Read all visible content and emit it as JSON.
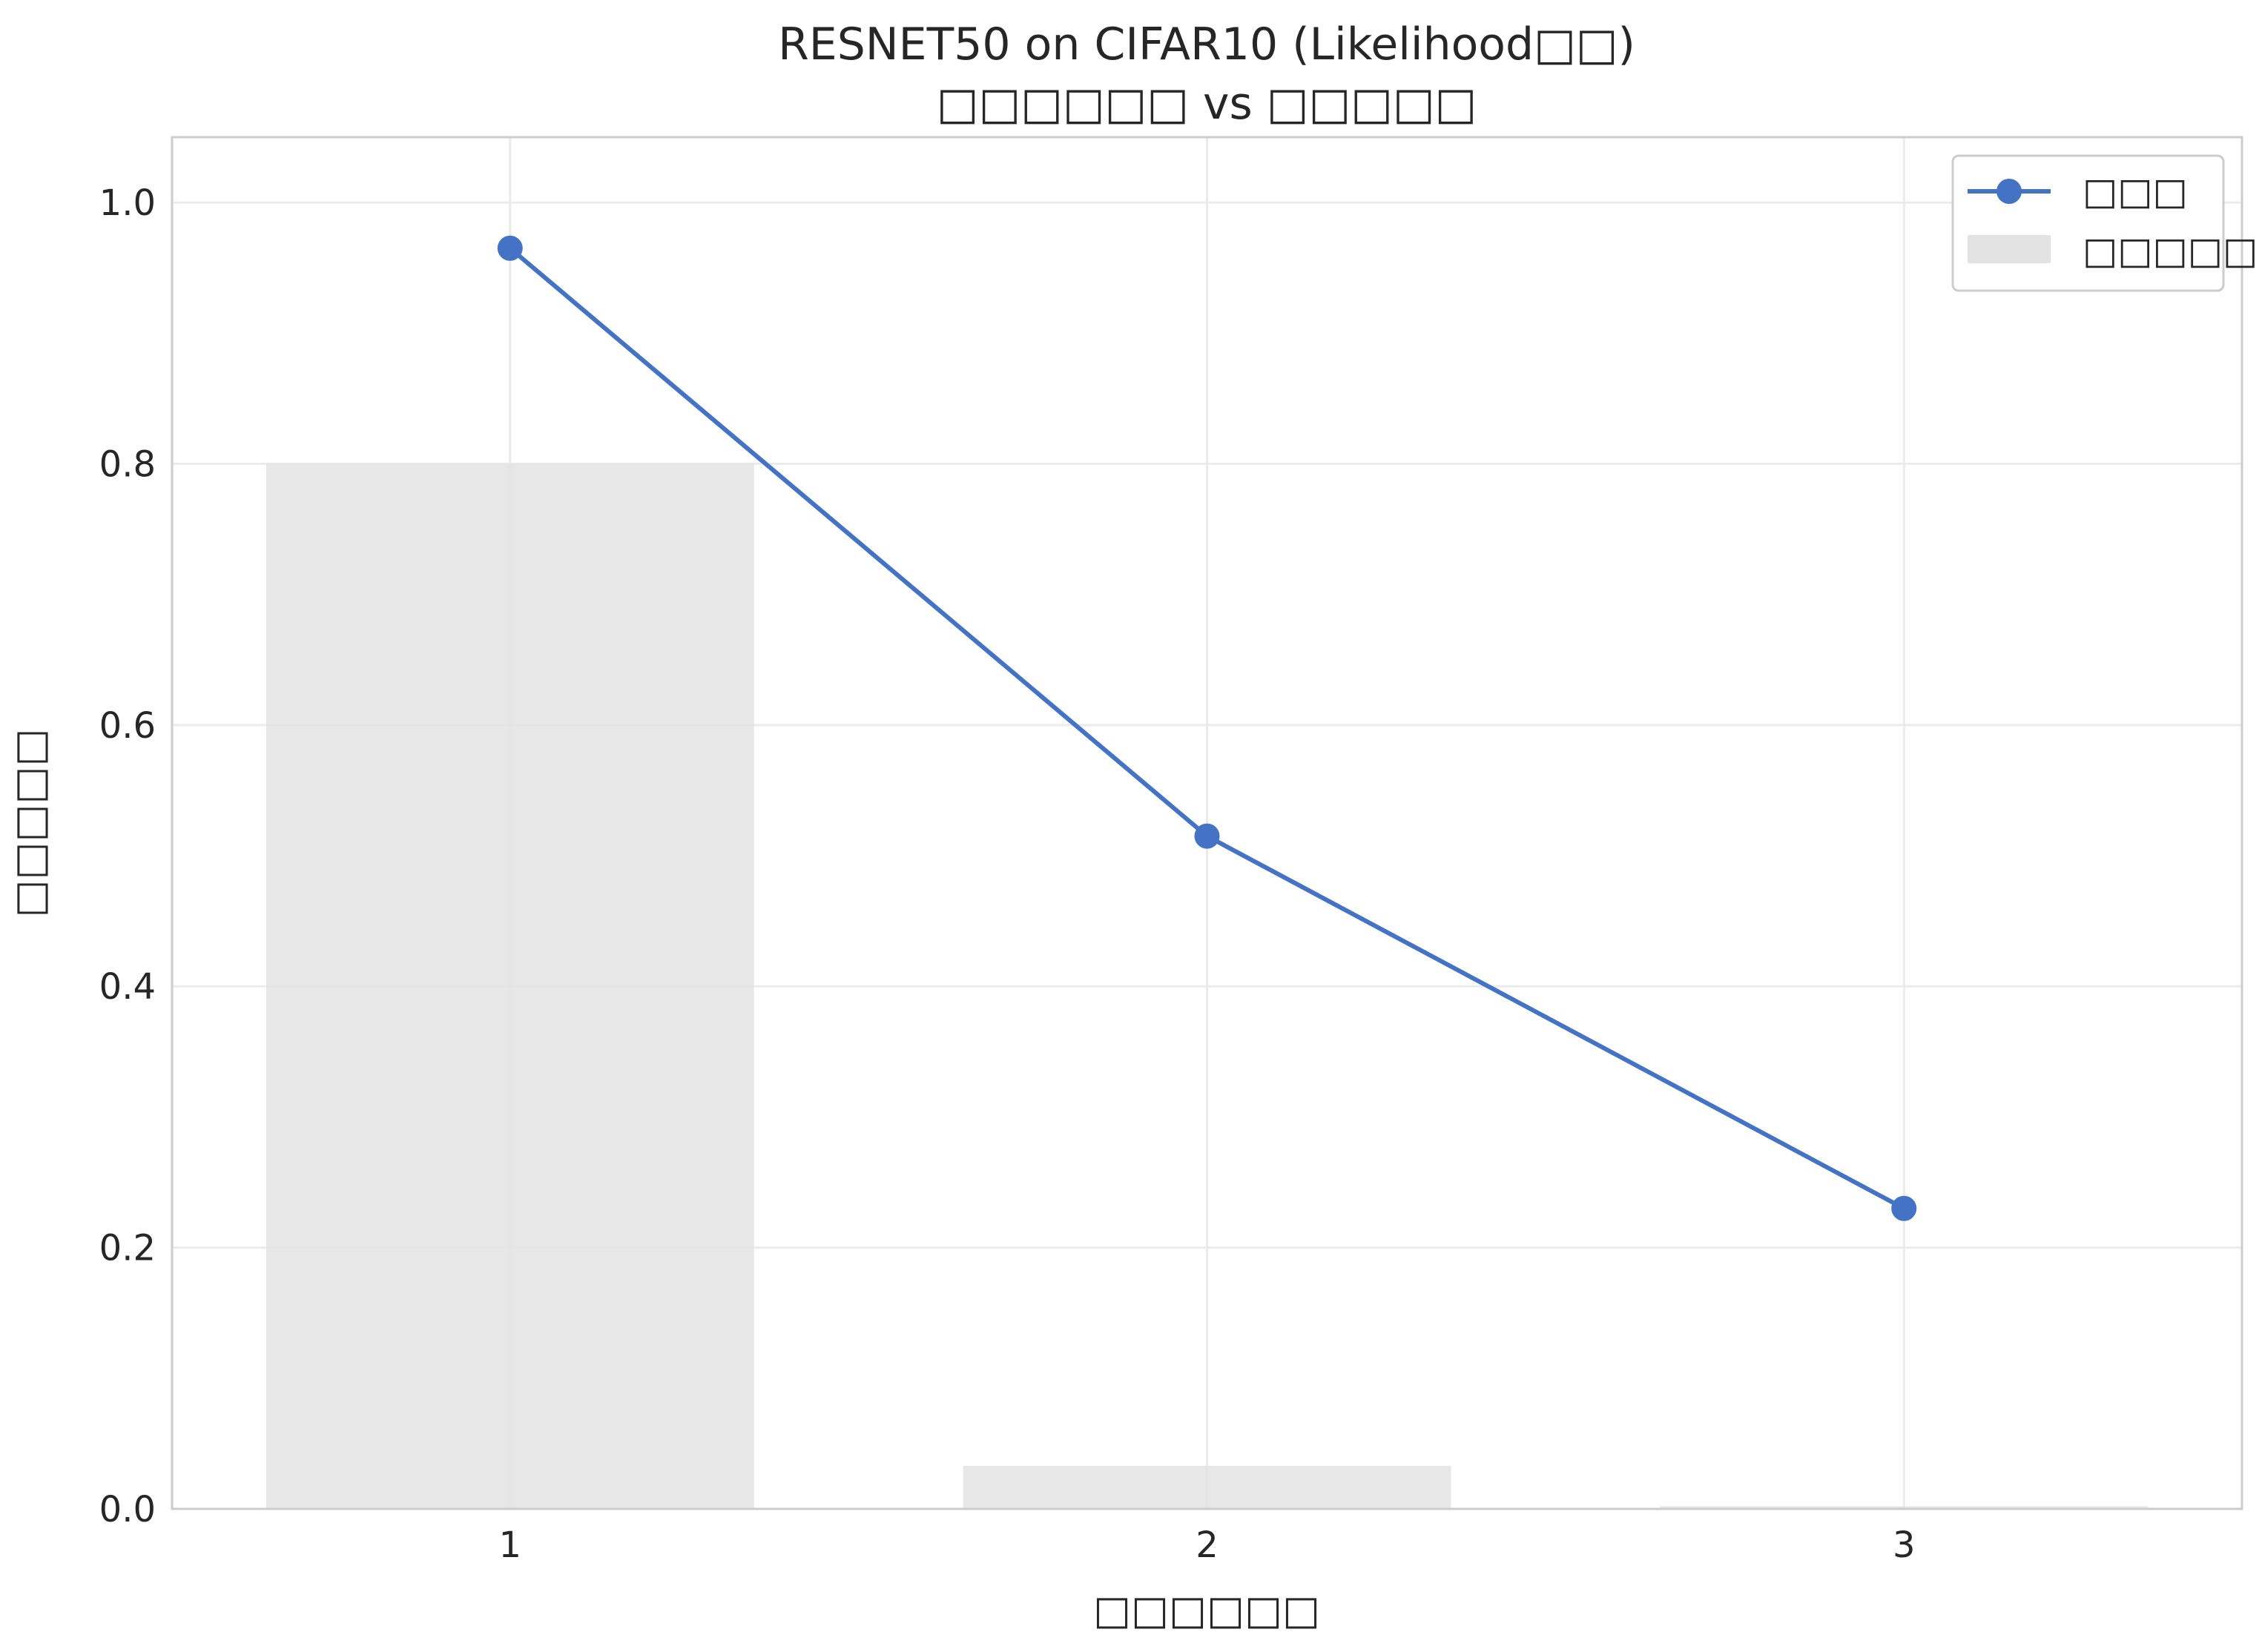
{
  "chart_data": {
    "type": "bar+line",
    "title_line1": "RESNET50 on CIFAR10 (Likelihood□□)",
    "title_line2": "□□□□□□ vs □□□□□",
    "xlabel": "□□□□□□",
    "ylabel": "□□□□□",
    "x": [
      1,
      2,
      3
    ],
    "x_tick_labels": [
      "1",
      "2",
      "3"
    ],
    "ylim": [
      0,
      1.05
    ],
    "y_ticks": [
      0.0,
      0.2,
      0.4,
      0.6,
      0.8,
      1.0
    ],
    "y_tick_labels": [
      "0.0",
      "0.2",
      "0.4",
      "0.6",
      "0.8",
      "1.0"
    ],
    "grid": true,
    "legend_position": "top-right",
    "series": [
      {
        "name": "□□□",
        "kind": "line",
        "marker": "circle",
        "color": "#4472C4",
        "values": [
          0.965,
          0.515,
          0.23
        ]
      },
      {
        "name": "□□□□□",
        "kind": "bar",
        "color": "#E3E3E3",
        "values": [
          0.8,
          0.033,
          0.002
        ]
      }
    ]
  }
}
